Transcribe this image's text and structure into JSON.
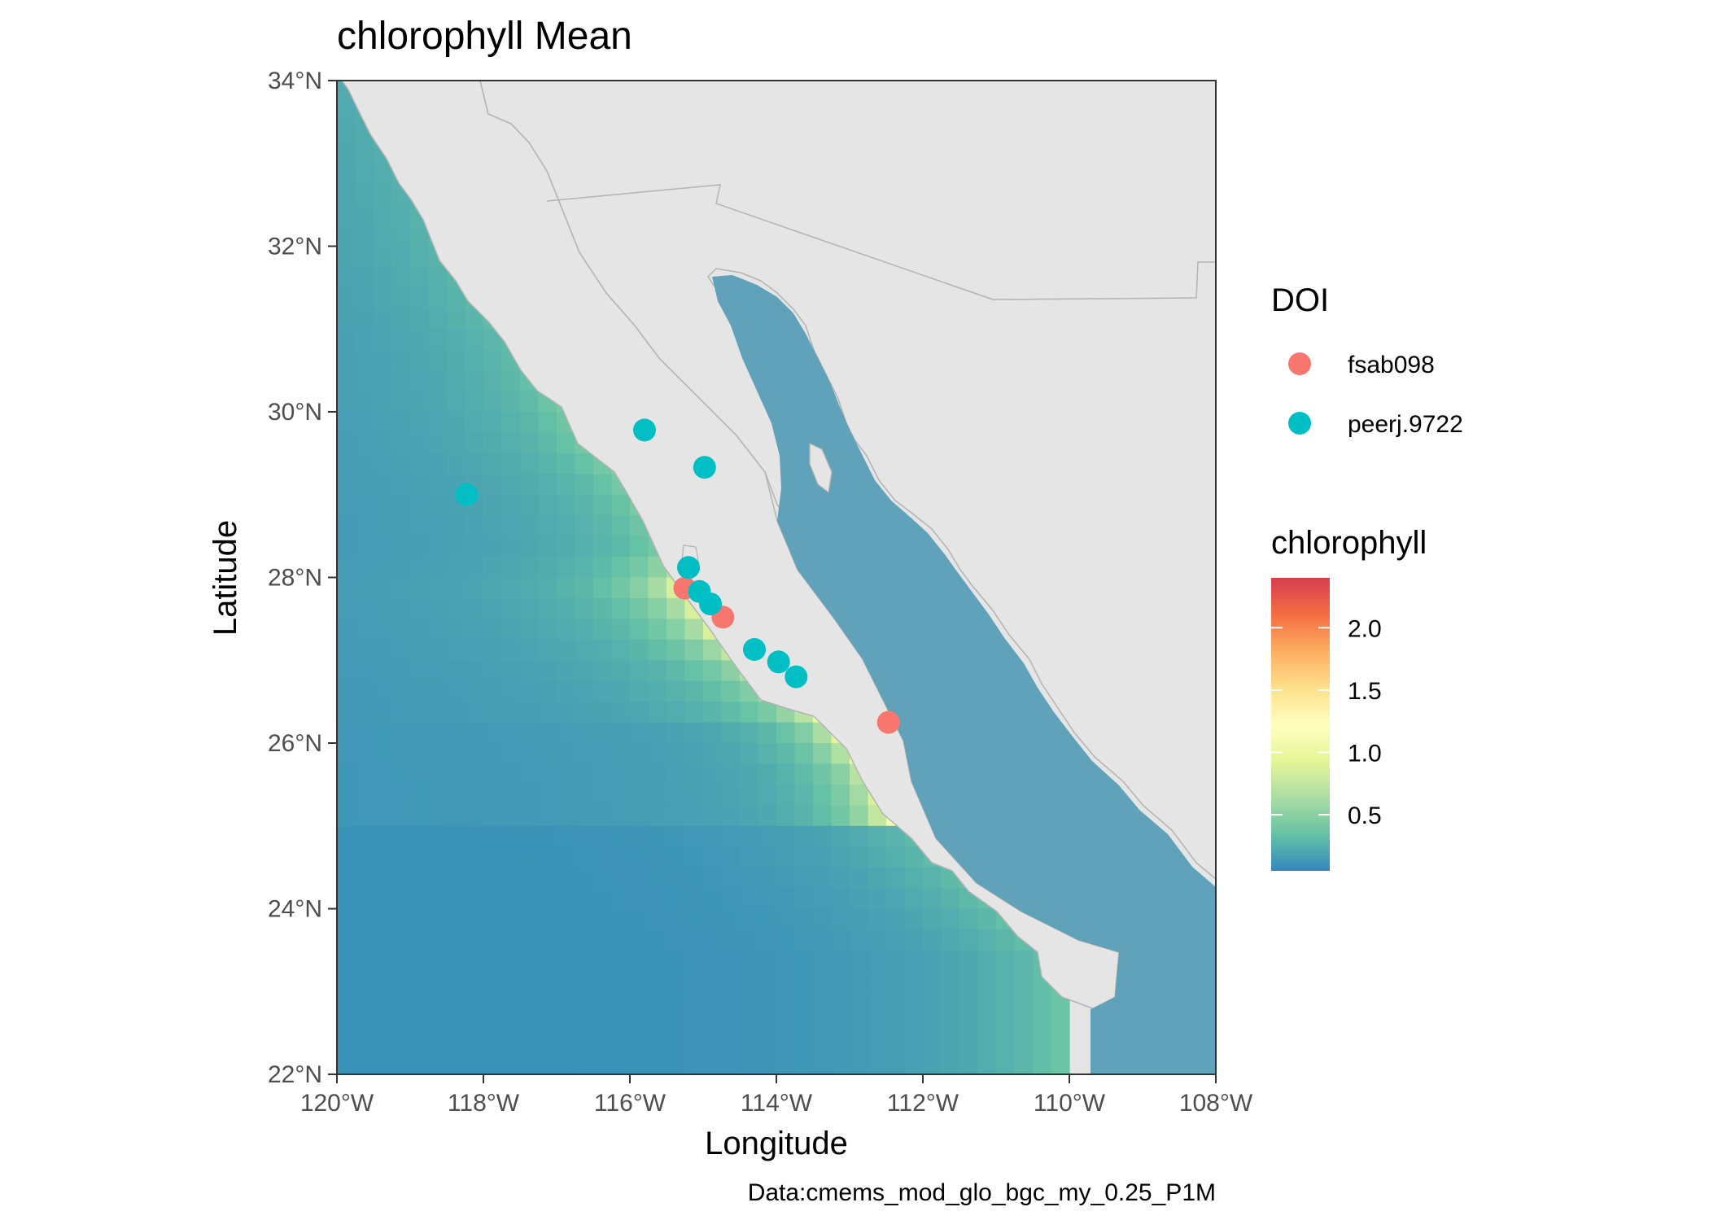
{
  "chart_data": {
    "type": "map",
    "title": "chlorophyll Mean",
    "xlabel": "Longitude",
    "ylabel": "Latitude",
    "caption": "Data:cmems_mod_glo_bgc_my_0.25_P1M",
    "xlim": [
      -120,
      -108
    ],
    "ylim": [
      22,
      34
    ],
    "x_ticks": [
      {
        "value": -120,
        "label": "120°W"
      },
      {
        "value": -118,
        "label": "118°W"
      },
      {
        "value": -116,
        "label": "116°W"
      },
      {
        "value": -114,
        "label": "114°W"
      },
      {
        "value": -112,
        "label": "112°W"
      },
      {
        "value": -110,
        "label": "110°W"
      },
      {
        "value": -108,
        "label": "108°W"
      }
    ],
    "y_ticks": [
      {
        "value": 22,
        "label": "22°N"
      },
      {
        "value": 24,
        "label": "24°N"
      },
      {
        "value": 26,
        "label": "26°N"
      },
      {
        "value": 28,
        "label": "28°N"
      },
      {
        "value": 30,
        "label": "30°N"
      },
      {
        "value": 32,
        "label": "32°N"
      },
      {
        "value": 34,
        "label": "34°N"
      }
    ],
    "grid": false,
    "land_color": "#e5e5e5",
    "colorbar": {
      "title": "chlorophyll",
      "range": [
        0.05,
        2.4
      ],
      "ticks": [
        {
          "value": 0.5,
          "label": "0.5"
        },
        {
          "value": 1.0,
          "label": "1.0"
        },
        {
          "value": 1.5,
          "label": "1.5"
        },
        {
          "value": 2.0,
          "label": "2.0"
        }
      ],
      "palette": [
        "#3288bd",
        "#66c2a5",
        "#abdda4",
        "#e6f598",
        "#ffffbf",
        "#fee08b",
        "#fdae61",
        "#f46d43",
        "#d53e4f"
      ]
    },
    "doi_legend": {
      "title": "DOI",
      "series": [
        {
          "name": "fsab098",
          "color": "#f8766d"
        },
        {
          "name": "peerj.9722",
          "color": "#00bfc4"
        }
      ]
    },
    "points": [
      {
        "doi": "fsab098",
        "lon": -115.25,
        "lat": 27.87
      },
      {
        "doi": "fsab098",
        "lon": -114.73,
        "lat": 27.52
      },
      {
        "doi": "fsab098",
        "lon": -112.47,
        "lat": 26.25
      },
      {
        "doi": "peerj.9722",
        "lon": -115.8,
        "lat": 29.78
      },
      {
        "doi": "peerj.9722",
        "lon": -114.98,
        "lat": 29.33
      },
      {
        "doi": "peerj.9722",
        "lon": -118.23,
        "lat": 29.0
      },
      {
        "doi": "peerj.9722",
        "lon": -115.2,
        "lat": 28.12
      },
      {
        "doi": "peerj.9722",
        "lon": -115.05,
        "lat": 27.83
      },
      {
        "doi": "peerj.9722",
        "lon": -114.9,
        "lat": 27.68
      },
      {
        "doi": "peerj.9722",
        "lon": -114.3,
        "lat": 27.13
      },
      {
        "doi": "peerj.9722",
        "lon": -113.97,
        "lat": 26.98
      },
      {
        "doi": "peerj.9722",
        "lon": -113.73,
        "lat": 26.8
      }
    ]
  }
}
